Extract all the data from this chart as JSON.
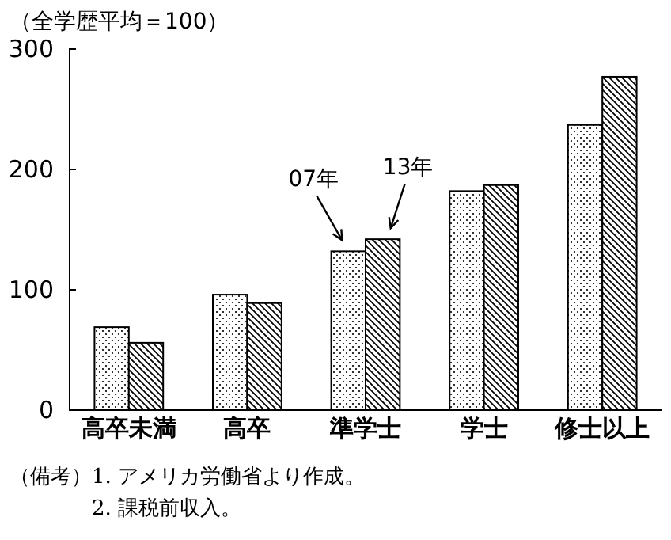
{
  "chart_data": {
    "type": "bar",
    "ylabel": "（全学歴平均＝100）",
    "categories": [
      "高卒未満",
      "高卒",
      "準学士",
      "学士",
      "修士以上"
    ],
    "series": [
      {
        "name": "07年",
        "color": "#000000",
        "values": [
          69,
          96,
          132,
          182,
          237
        ]
      },
      {
        "name": "13年",
        "color": "#000000",
        "values": [
          56,
          89,
          142,
          187,
          277
        ]
      }
    ],
    "ylim": [
      0,
      300
    ],
    "yticks": [
      0,
      100,
      200,
      300
    ],
    "grid": false,
    "legend": false,
    "annotations": [
      "（備考）1. アメリカ労働省より作成。",
      "2. 課税前収入。"
    ]
  }
}
